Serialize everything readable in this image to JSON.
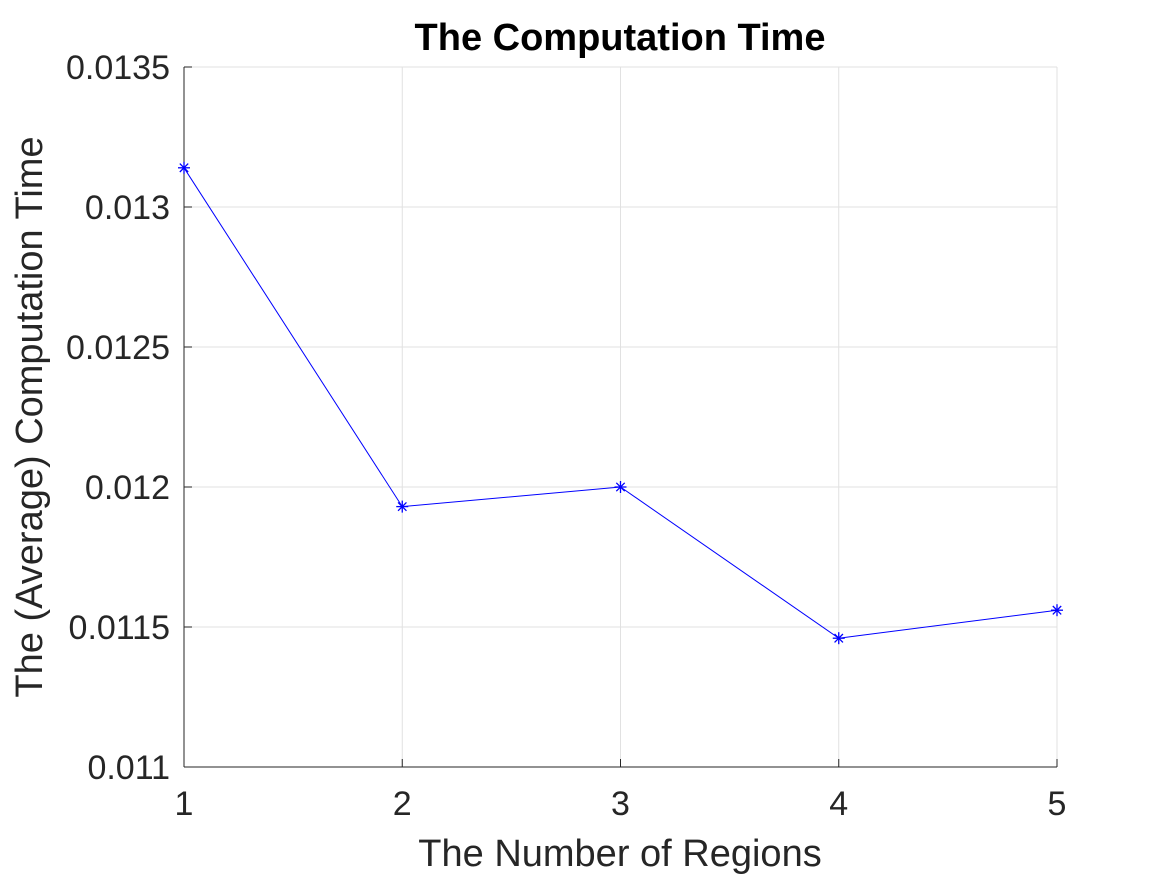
{
  "chart_data": {
    "type": "line",
    "title": "The Computation Time",
    "xlabel": "The Number of Regions",
    "ylabel": "The (Average) Computation Time",
    "x": [
      1,
      2,
      3,
      4,
      5
    ],
    "xticks": [
      "1",
      "2",
      "3",
      "4",
      "5"
    ],
    "xlim": [
      1,
      5
    ],
    "ylim": [
      0.011,
      0.0135
    ],
    "yticks": [
      0.011,
      0.0115,
      0.012,
      0.0125,
      0.013,
      0.0135
    ],
    "ytick_labels": [
      "0.011",
      "0.0115",
      "0.012",
      "0.0125",
      "0.013",
      "0.0135"
    ],
    "grid": true,
    "series": [
      {
        "values": [
          0.01314,
          0.01193,
          0.012,
          0.01146,
          0.01156
        ],
        "color": "#0000ff",
        "marker": "asterisk"
      }
    ]
  }
}
